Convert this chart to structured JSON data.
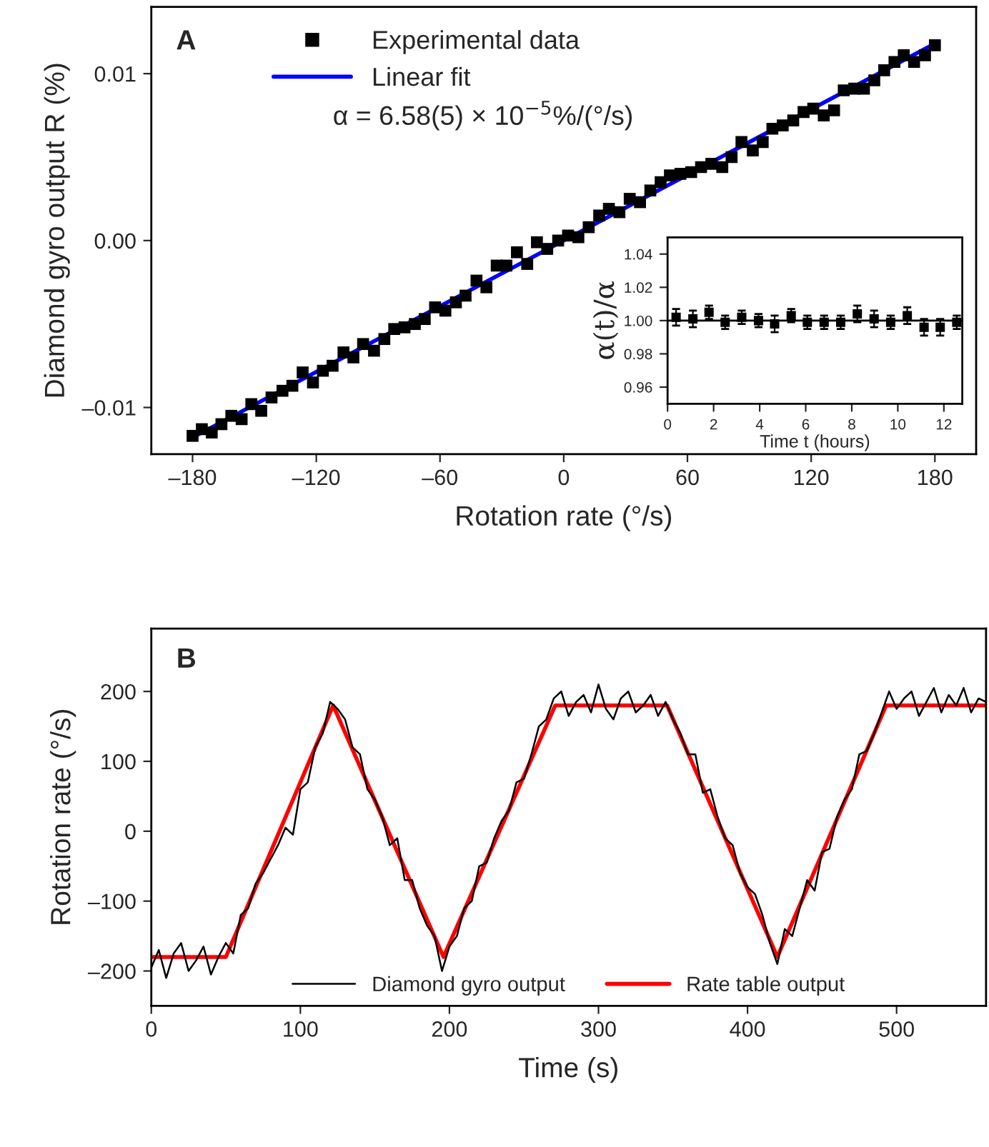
{
  "chart_data": [
    {
      "type": "scatter",
      "xlabel": "Rotation rate (°/s)",
      "ylabel": "Diamond gyro output R (%)",
      "annotations": [
        "A",
        "α = 6.58(5) × 10$^{−5}$%/(°/s)"
      ],
      "xlim": [
        -200,
        200
      ],
      "xticks": [
        {
          "value": -180,
          "label": "–180"
        },
        {
          "value": -120,
          "label": "–120"
        },
        {
          "value": -60,
          "label": "–60"
        },
        0,
        60,
        120,
        180
      ],
      "ylim": [
        -0.0128,
        0.014
      ],
      "yticks": [
        {
          "value": -0.01,
          "label": "–0.01"
        },
        {
          "value": 0,
          "label": "0.00"
        },
        0.01
      ],
      "legend": "top",
      "grid": false,
      "series": [
        {
          "name": "Experimental data",
          "type": "scatter",
          "marker": "square",
          "color": "#000000",
          "x": [
            -180,
            -175.5,
            -170.7,
            -166,
            -161.2,
            -156.2,
            -151.5,
            -146.7,
            -141.7,
            -136.4,
            -131.6,
            -126.6,
            -121.6,
            -116.8,
            -112.1,
            -106.8,
            -102,
            -97.3,
            -92,
            -87,
            -82.2,
            -77.2,
            -72.2,
            -67.4,
            -62.4,
            -57.4,
            -52.3,
            -47.6,
            -42.3,
            -37.5,
            -32.5,
            -27.8,
            -22.7,
            -17.7,
            -13,
            -8,
            -2.7,
            2.1,
            7.1,
            12.1,
            17.2,
            21.9,
            27,
            32,
            37,
            42,
            47,
            51.5,
            56.6,
            61.8,
            66.6,
            71.6,
            76.9,
            81.4,
            86.2,
            91.7,
            96.5,
            101.2,
            106.2,
            111.3,
            116.3,
            121,
            126.1,
            131.1,
            135.8,
            140.9,
            145.6,
            150.6,
            155.4,
            160.4,
            164.9,
            169.9,
            175.2,
            180
          ],
          "values": [
            -0.0117,
            -0.0113,
            -0.0115,
            -0.011,
            -0.0105,
            -0.0107,
            -0.0098,
            -0.0102,
            -0.0094,
            -0.009,
            -0.0087,
            -0.0079,
            -0.0085,
            -0.0078,
            -0.0075,
            -0.0067,
            -0.007,
            -0.0062,
            -0.0066,
            -0.0059,
            -0.0053,
            -0.0052,
            -0.005,
            -0.0047,
            -0.004,
            -0.0042,
            -0.0037,
            -0.0033,
            -0.0024,
            -0.0028,
            -0.0015,
            -0.0015,
            -0.0007,
            -0.0014,
            -0.0001,
            -0.0005,
            0.0,
            0.0003,
            0.0002,
            0.0008,
            0.0015,
            0.0019,
            0.0017,
            0.0025,
            0.0023,
            0.003,
            0.0035,
            0.0039,
            0.004,
            0.0041,
            0.0044,
            0.0046,
            0.0044,
            0.005,
            0.0059,
            0.0054,
            0.0059,
            0.0067,
            0.0069,
            0.0072,
            0.0077,
            0.0079,
            0.0075,
            0.0078,
            0.009,
            0.0091,
            0.0091,
            0.0096,
            0.0102,
            0.0107,
            0.0111,
            0.0107,
            0.0111,
            0.0117
          ]
        },
        {
          "name": "Linear fit",
          "type": "line",
          "color": "#0000ff",
          "x": [
            -180,
            180
          ],
          "values": [
            -0.0118,
            0.0118
          ]
        }
      ]
    },
    {
      "type": "scatter",
      "xlabel": "Time t (hours)",
      "ylabel": "α(t)/α",
      "xlim": [
        0,
        12.8
      ],
      "xticks": [
        0,
        2,
        4,
        6,
        8,
        10,
        12
      ],
      "ylim": [
        0.95,
        1.05
      ],
      "yticks": [
        {
          "value": 0.96,
          "label": "0.96"
        },
        {
          "value": 0.98,
          "label": "0.98"
        },
        {
          "value": 1.0,
          "label": "1.00"
        },
        {
          "value": 1.02,
          "label": "1.02"
        },
        {
          "value": 1.04,
          "label": "1.04"
        }
      ],
      "grid": false,
      "legend": false,
      "ref_lines": [
        {
          "axis": "y",
          "value": 1.0,
          "color": "#000000"
        }
      ],
      "series": [
        {
          "type": "scatter",
          "marker": "square",
          "color": "#000000",
          "x": [
            0.37,
            1.1,
            1.8,
            2.5,
            3.22,
            3.95,
            4.65,
            5.37,
            6.07,
            6.8,
            7.52,
            8.24,
            8.97,
            9.69,
            10.41,
            11.14,
            11.84,
            12.56
          ],
          "values": [
            1.002,
            1.001,
            1.005,
            0.999,
            1.002,
            1.0,
            0.998,
            1.003,
            0.999,
            0.999,
            0.999,
            1.004,
            1.001,
            0.999,
            1.003,
            0.996,
            0.996,
            0.999
          ],
          "errors": [
            0.005,
            0.005,
            0.004,
            0.004,
            0.004,
            0.004,
            0.005,
            0.004,
            0.004,
            0.004,
            0.004,
            0.005,
            0.005,
            0.004,
            0.005,
            0.005,
            0.005,
            0.004
          ]
        }
      ]
    },
    {
      "type": "line",
      "xlabel": "Time (s)",
      "ylabel": "Rotation rate (°/s)",
      "annotations": [
        "B"
      ],
      "xlim": [
        0,
        560
      ],
      "xticks": [
        0,
        100,
        200,
        300,
        400,
        500
      ],
      "ylim": [
        -250,
        290
      ],
      "yticks": [
        {
          "value": -200,
          "label": "–200"
        },
        {
          "value": -100,
          "label": "–100"
        },
        0,
        100,
        200
      ],
      "legend": "bottom",
      "grid": false,
      "series": [
        {
          "name": "Diamond gyro output",
          "color": "#000000",
          "x": [
            0,
            5,
            10,
            15,
            20,
            25,
            30,
            35,
            40,
            45,
            50,
            55,
            60,
            65,
            70,
            75,
            80,
            85,
            90,
            95,
            100,
            105,
            110,
            115,
            120,
            125,
            130,
            135,
            140,
            145,
            150,
            155,
            160,
            165,
            170,
            175,
            180,
            185,
            190,
            195,
            200,
            205,
            210,
            215,
            220,
            225,
            230,
            235,
            240,
            245,
            250,
            255,
            260,
            265,
            270,
            275,
            280,
            285,
            290,
            295,
            300,
            305,
            310,
            315,
            320,
            325,
            330,
            335,
            340,
            345,
            350,
            355,
            360,
            365,
            370,
            375,
            380,
            385,
            390,
            395,
            400,
            405,
            410,
            415,
            420,
            425,
            430,
            435,
            440,
            445,
            450,
            455,
            460,
            465,
            470,
            475,
            480,
            485,
            490,
            495,
            500,
            505,
            510,
            515,
            520,
            525,
            530,
            535,
            540,
            545,
            550,
            555,
            560
          ],
          "values": [
            -195,
            -170,
            -210,
            -175,
            -160,
            -200,
            -185,
            -165,
            -205,
            -180,
            -160,
            -175,
            -120,
            -110,
            -75,
            -60,
            -40,
            -20,
            5,
            -5,
            60,
            70,
            120,
            140,
            185,
            175,
            160,
            120,
            110,
            60,
            45,
            20,
            -20,
            -10,
            -70,
            -70,
            -110,
            -135,
            -150,
            -200,
            -165,
            -150,
            -110,
            -100,
            -50,
            -45,
            -10,
            15,
            30,
            70,
            75,
            110,
            150,
            160,
            190,
            200,
            165,
            185,
            195,
            170,
            210,
            175,
            160,
            190,
            200,
            170,
            180,
            195,
            165,
            185,
            160,
            140,
            110,
            110,
            55,
            60,
            20,
            -10,
            -20,
            -60,
            -80,
            -90,
            -120,
            -160,
            -190,
            -140,
            -150,
            -110,
            -70,
            -85,
            -30,
            -25,
            20,
            45,
            60,
            110,
            115,
            140,
            170,
            200,
            175,
            190,
            200,
            165,
            185,
            205,
            170,
            195,
            180,
            205,
            170,
            190,
            185
          ]
        },
        {
          "name": "Rate table output",
          "color": "#ff0000",
          "x": [
            0,
            50,
            122,
            196,
            271,
            346,
            420,
            493,
            560
          ],
          "values": [
            -180,
            -180,
            180,
            -180,
            180,
            180,
            -180,
            180,
            180
          ]
        }
      ]
    }
  ]
}
